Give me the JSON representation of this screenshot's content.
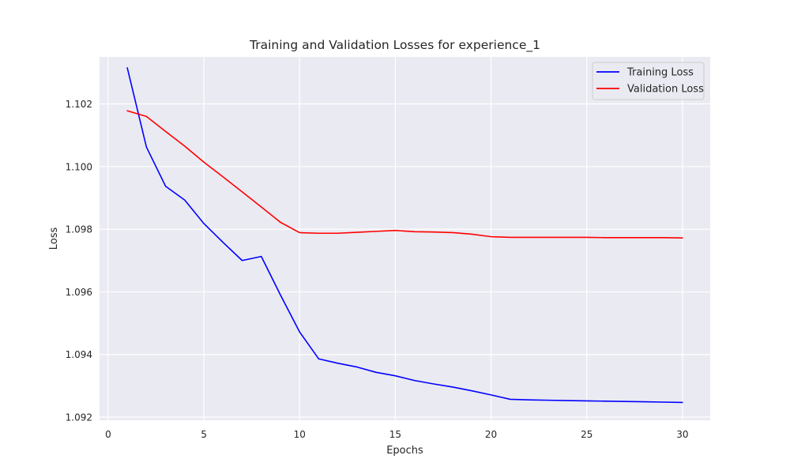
{
  "chart_data": {
    "type": "line",
    "title": "Training and Validation Losses for experience_1",
    "xlabel": "Epochs",
    "ylabel": "Loss",
    "xlim": [
      -0.45,
      31.45
    ],
    "ylim": [
      1.0919,
      1.1035
    ],
    "xticks": [
      0,
      5,
      10,
      15,
      20,
      25,
      30
    ],
    "yticks": [
      1.092,
      1.094,
      1.096,
      1.098,
      1.1,
      1.102
    ],
    "ytick_labels": [
      "1.092",
      "1.094",
      "1.096",
      "1.098",
      "1.100",
      "1.102"
    ],
    "grid": true,
    "legend_position": "upper right",
    "x": [
      1,
      2,
      3,
      4,
      5,
      6,
      7,
      8,
      9,
      10,
      11,
      12,
      13,
      14,
      15,
      16,
      17,
      18,
      19,
      20,
      21,
      22,
      23,
      24,
      25,
      26,
      27,
      28,
      29,
      30
    ],
    "series": [
      {
        "name": "Training Loss",
        "color": "#0000ff",
        "values": [
          1.10315,
          1.10062,
          1.09937,
          1.09893,
          1.09818,
          1.09758,
          1.097,
          1.09713,
          1.0959,
          1.09472,
          1.09386,
          1.09372,
          1.0936,
          1.09343,
          1.09332,
          1.09317,
          1.09306,
          1.09296,
          1.09284,
          1.09271,
          1.09257,
          1.09255,
          1.09254,
          1.09253,
          1.09252,
          1.09251,
          1.0925,
          1.09249,
          1.09248,
          1.09247
        ]
      },
      {
        "name": "Validation Loss",
        "color": "#ff0000",
        "values": [
          1.10178,
          1.1016,
          1.10112,
          1.10065,
          1.10014,
          1.09967,
          1.09919,
          1.09871,
          1.09822,
          1.09789,
          1.09787,
          1.09787,
          1.0979,
          1.09793,
          1.09796,
          1.09792,
          1.09791,
          1.09789,
          1.09784,
          1.09776,
          1.09774,
          1.09774,
          1.09774,
          1.09774,
          1.09774,
          1.09773,
          1.09773,
          1.09773,
          1.09773,
          1.09772
        ]
      }
    ]
  }
}
